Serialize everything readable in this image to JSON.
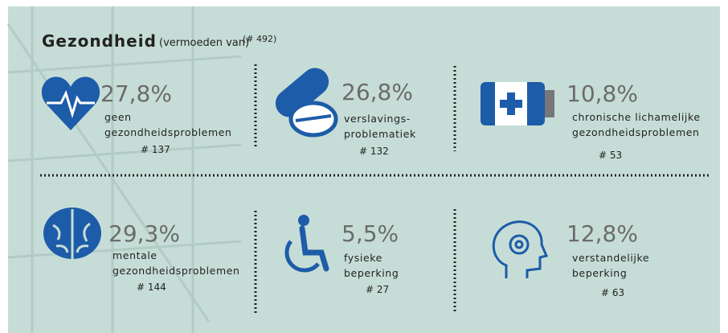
{
  "header": {
    "title": "Gezondheid",
    "subtitle": "(vermoeden van)",
    "total": "(# 492)"
  },
  "items": [
    {
      "percent": "27,8%",
      "label": [
        "geen",
        "gezondheidsproblemen"
      ],
      "count": "# 137"
    },
    {
      "percent": "26,8%",
      "label": [
        "verslavings-",
        "problematiek"
      ],
      "count": "# 132"
    },
    {
      "percent": "10,8%",
      "label": [
        "chronische lichamelijke",
        "gezondheidsproblemen"
      ],
      "count": "# 53"
    },
    {
      "percent": "29,3%",
      "label": [
        "mentale",
        "gezondheidsproblemen"
      ],
      "count": "# 144"
    },
    {
      "percent": "5,5%",
      "label": [
        "fysieke",
        "beperking"
      ],
      "count": "# 27"
    },
    {
      "percent": "12,8%",
      "label": [
        "verstandelijke",
        "beperking"
      ],
      "count": "# 63"
    }
  ]
}
